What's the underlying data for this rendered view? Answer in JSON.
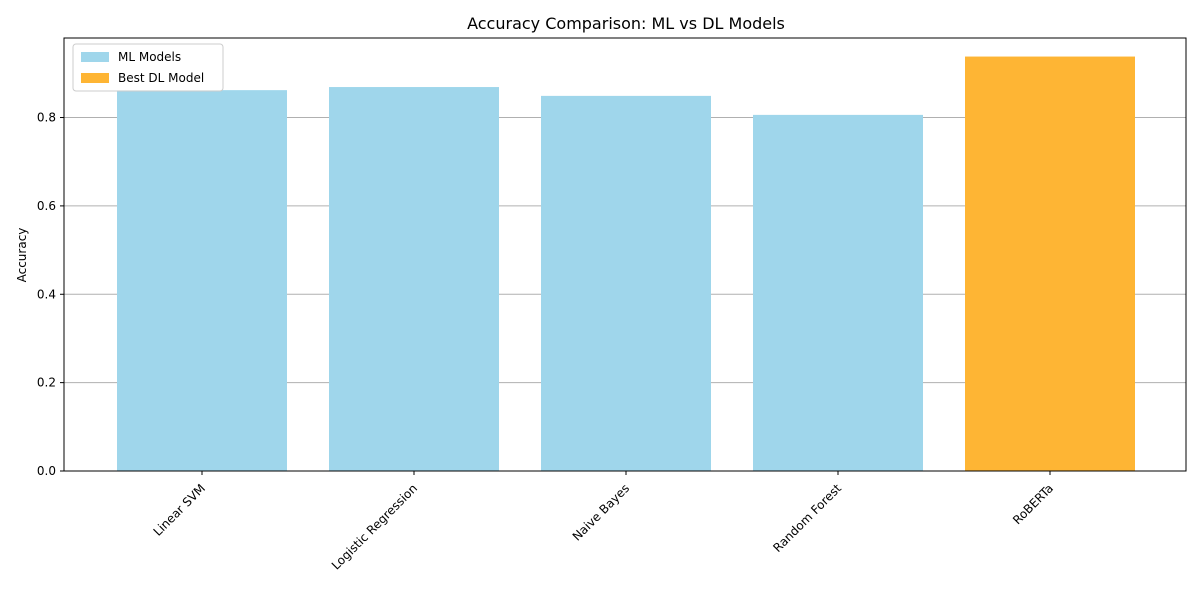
{
  "chart_data": {
    "type": "bar",
    "title": "Accuracy Comparison: ML vs DL Models",
    "xlabel": "",
    "ylabel": "Accuracy",
    "ylim": [
      0,
      0.98
    ],
    "yticks": [
      0.0,
      0.2,
      0.4,
      0.6,
      0.8
    ],
    "ytick_labels": [
      "0.0",
      "0.2",
      "0.4",
      "0.6",
      "0.8"
    ],
    "grid": "horizontal",
    "legend_position": "top-left",
    "categories": [
      "Linear SVM",
      "Logistic Regression",
      "Naive Bayes",
      "Random Forest",
      "RoBERTa"
    ],
    "values": [
      0.862,
      0.869,
      0.849,
      0.806,
      0.938
    ],
    "bar_groups": [
      "ML Models",
      "ML Models",
      "ML Models",
      "ML Models",
      "Best DL Model"
    ],
    "series": [
      {
        "name": "ML Models",
        "color": "#9fd6eb"
      },
      {
        "name": "Best DL Model",
        "color": "#feb534"
      }
    ]
  }
}
